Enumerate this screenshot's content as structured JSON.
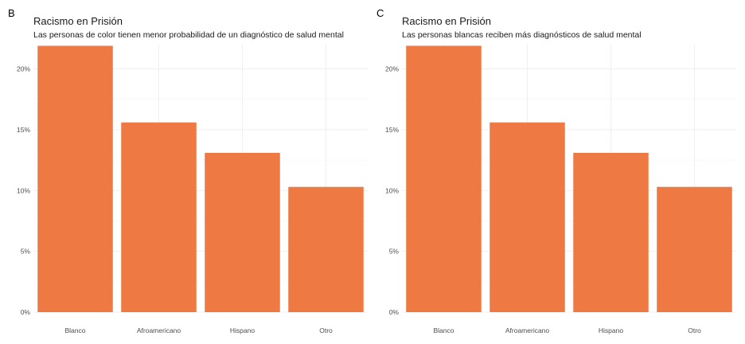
{
  "colors": {
    "bar": "#ee7942",
    "grid_major": "#ebebeb",
    "grid_minor": "#f5f5f5",
    "text": "#1a1a1a",
    "tick_text": "#4d4d4d"
  },
  "panels": [
    {
      "tag": "B",
      "title": "Racismo en Prisión",
      "subtitle": "Las personas de color tienen menor probabilidad de un diagnóstico de salud mental"
    },
    {
      "tag": "C",
      "title": "Racismo en Prisión",
      "subtitle": "Las personas blancas reciben más diagnósticos de salud mental"
    }
  ],
  "chart_data": [
    {
      "type": "bar",
      "title": "Racismo en Prisión",
      "subtitle": "Las personas de color tienen menor probabilidad de un diagnóstico de salud mental",
      "categories": [
        "Blanco",
        "Afroamericano",
        "Hispano",
        "Otro"
      ],
      "values": [
        21.9,
        15.6,
        13.1,
        10.3
      ],
      "xlabel": "",
      "ylabel": "",
      "ylim": [
        0,
        22
      ],
      "yticks": [
        0,
        5,
        10,
        15,
        20
      ],
      "ytick_labels": [
        "0%",
        "5%",
        "10%",
        "15%",
        "20%"
      ],
      "grid": true
    },
    {
      "type": "bar",
      "title": "Racismo en Prisión",
      "subtitle": "Las personas blancas reciben más diagnósticos de salud mental",
      "categories": [
        "Blanco",
        "Afroamericano",
        "Hispano",
        "Otro"
      ],
      "values": [
        21.9,
        15.6,
        13.1,
        10.3
      ],
      "xlabel": "",
      "ylabel": "",
      "ylim": [
        0,
        22
      ],
      "yticks": [
        0,
        5,
        10,
        15,
        20
      ],
      "ytick_labels": [
        "0%",
        "5%",
        "10%",
        "15%",
        "20%"
      ],
      "grid": true
    }
  ]
}
